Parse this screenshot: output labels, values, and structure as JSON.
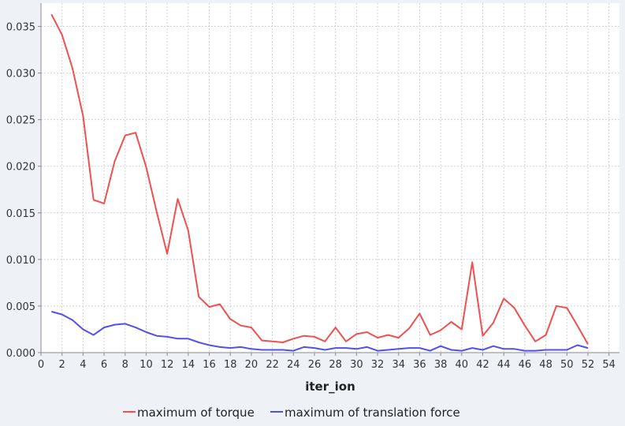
{
  "chart_data": {
    "type": "line",
    "title": "",
    "xlabel": "iter_ion",
    "ylabel": "",
    "xlim": [
      0,
      55
    ],
    "ylim": [
      0,
      0.0375
    ],
    "grid": true,
    "legend_position": "bottom",
    "x_ticks": [
      0,
      2,
      4,
      6,
      8,
      10,
      12,
      14,
      16,
      18,
      20,
      22,
      24,
      26,
      28,
      30,
      32,
      34,
      36,
      38,
      40,
      42,
      44,
      46,
      48,
      50,
      52,
      54
    ],
    "y_ticks": [
      0.0,
      0.005,
      0.01,
      0.015,
      0.02,
      0.025,
      0.03,
      0.035
    ],
    "y_tick_labels": [
      "0.000",
      "0.005",
      "0.010",
      "0.015",
      "0.020",
      "0.025",
      "0.030",
      "0.035"
    ],
    "x": [
      1,
      2,
      3,
      4,
      5,
      6,
      7,
      8,
      9,
      10,
      11,
      12,
      13,
      14,
      15,
      16,
      17,
      18,
      19,
      20,
      21,
      22,
      23,
      24,
      25,
      26,
      27,
      28,
      29,
      30,
      31,
      32,
      33,
      34,
      35,
      36,
      37,
      38,
      39,
      40,
      41,
      42,
      43,
      44,
      45,
      46,
      47,
      48,
      49,
      50,
      51,
      52
    ],
    "series": [
      {
        "name": "maximum of torque",
        "color": "#f05050",
        "values": [
          0.0363,
          0.0341,
          0.0305,
          0.0254,
          0.0164,
          0.016,
          0.0205,
          0.0233,
          0.0236,
          0.0199,
          0.0151,
          0.0106,
          0.0165,
          0.0131,
          0.006,
          0.0049,
          0.0052,
          0.0036,
          0.0029,
          0.0027,
          0.0013,
          0.0012,
          0.0011,
          0.0015,
          0.0018,
          0.0017,
          0.0012,
          0.0027,
          0.0012,
          0.002,
          0.0022,
          0.0016,
          0.0019,
          0.0016,
          0.0026,
          0.0042,
          0.0019,
          0.0024,
          0.0033,
          0.0025,
          0.0097,
          0.0018,
          0.0032,
          0.0058,
          0.0048,
          0.0029,
          0.0012,
          0.0019,
          0.005,
          0.0048,
          0.0029,
          0.0009
        ]
      },
      {
        "name": "maximum of translation force",
        "color": "#5050f0",
        "values": [
          0.0044,
          0.0041,
          0.0035,
          0.0025,
          0.0019,
          0.0027,
          0.003,
          0.0031,
          0.0027,
          0.0022,
          0.0018,
          0.0017,
          0.0015,
          0.0015,
          0.0011,
          0.0008,
          0.0006,
          0.0005,
          0.0006,
          0.0004,
          0.0003,
          0.0003,
          0.0003,
          0.0002,
          0.0006,
          0.0005,
          0.0003,
          0.0005,
          0.0005,
          0.0004,
          0.0006,
          0.0002,
          0.0003,
          0.0004,
          0.0005,
          0.0005,
          0.0002,
          0.0007,
          0.0003,
          0.0002,
          0.0005,
          0.0003,
          0.0007,
          0.0004,
          0.0004,
          0.0002,
          0.0002,
          0.0003,
          0.0003,
          0.0003,
          0.0008,
          0.0005
        ]
      }
    ]
  }
}
